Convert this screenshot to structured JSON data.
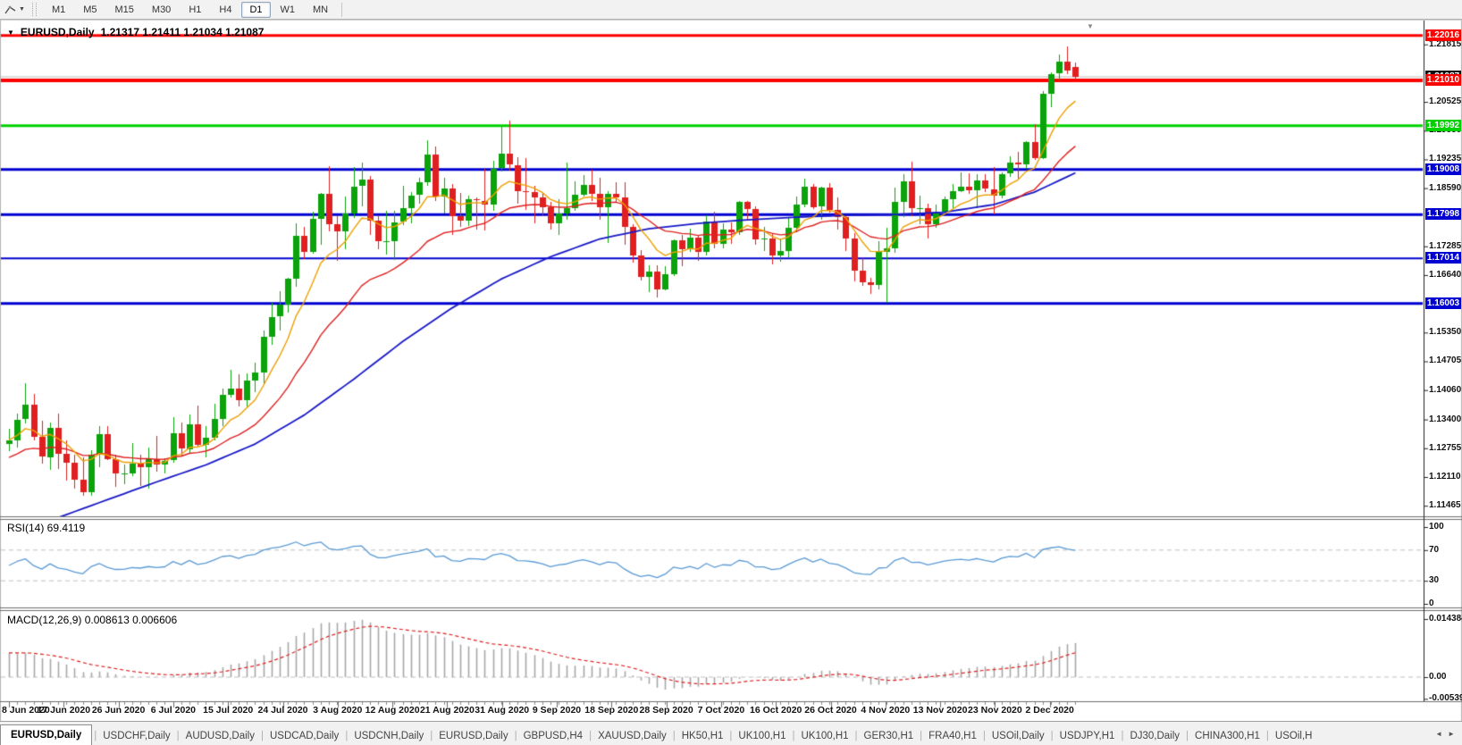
{
  "toolbar": {
    "timeframes": [
      "M1",
      "M5",
      "M15",
      "M30",
      "H1",
      "H4",
      "D1",
      "W1",
      "MN"
    ],
    "active": "D1"
  },
  "chart": {
    "title_symbol": "EURUSD,Daily",
    "title_ohlc": "1.21317 1.21411 1.21034 1.21087",
    "rsi_label": "RSI(14) 69.4119",
    "macd_label": "MACD(12,26,9) 0.008613 0.006606",
    "shift_marker": "▼"
  },
  "axis": {
    "price_ticks": [
      {
        "label": "1.21815",
        "price": 1.21815
      },
      {
        "label": "1.20525",
        "price": 1.20525
      },
      {
        "label": "1.19880",
        "price": 1.1988
      },
      {
        "label": "1.19235",
        "price": 1.19235
      },
      {
        "label": "1.18590",
        "price": 1.1859
      },
      {
        "label": "1.17285",
        "price": 1.17285
      },
      {
        "label": "1.16640",
        "price": 1.1664
      },
      {
        "label": "1.15350",
        "price": 1.1535
      },
      {
        "label": "1.14705",
        "price": 1.14705
      },
      {
        "label": "1.14060",
        "price": 1.1406
      },
      {
        "label": "1.13400",
        "price": 1.134
      },
      {
        "label": "1.12755",
        "price": 1.12755
      },
      {
        "label": "1.12110",
        "price": 1.1211
      },
      {
        "label": "1.11465",
        "price": 1.11465
      }
    ],
    "rsi_ticks": [
      {
        "label": "100",
        "value": 100
      },
      {
        "label": "70",
        "value": 70
      },
      {
        "label": "30",
        "value": 30
      },
      {
        "label": "0",
        "value": 0
      }
    ],
    "macd_ticks": [
      {
        "label": "0.014384",
        "value": 0.014384
      },
      {
        "label": "0.00",
        "value": 0
      },
      {
        "label": "-0.00539",
        "value": -0.00539
      }
    ],
    "date_labels": [
      "8 Jun 2020",
      "17 Jun 2020",
      "26 Jun 2020",
      "6 Jul 2020",
      "15 Jul 2020",
      "24 Jul 2020",
      "3 Aug 2020",
      "12 Aug 2020",
      "21 Aug 2020",
      "31 Aug 2020",
      "9 Sep 2020",
      "18 Sep 2020",
      "28 Sep 2020",
      "7 Oct 2020",
      "16 Oct 2020",
      "26 Oct 2020",
      "4 Nov 2020",
      "13 Nov 2020",
      "23 Nov 2020",
      "2 Dec 2020"
    ]
  },
  "hlines": [
    {
      "label": "1.22016",
      "price": 1.22016,
      "color": "#ff0000",
      "width": 3
    },
    {
      "label": "1.21010",
      "price": 1.2101,
      "color": "#ff0000",
      "width": 4
    },
    {
      "label": "1.19992",
      "price": 1.19992,
      "color": "#00d200",
      "width": 3
    },
    {
      "label": "1.19008",
      "price": 1.19008,
      "color": "#0000d2",
      "width": 3
    },
    {
      "label": "1.17998",
      "price": 1.17998,
      "color": "#0000d2",
      "width": 3
    },
    {
      "label": "1.17014",
      "price": 1.17014,
      "color": "#0000d2",
      "width": 2
    },
    {
      "label": "1.16003",
      "price": 1.16003,
      "color": "#0000d2",
      "width": 3
    }
  ],
  "current_price": {
    "label": "1.21087",
    "price": 1.21087,
    "line_color": "#b8b8b8",
    "badge_color": "#111111"
  },
  "tabbar": {
    "tabs": [
      "EURUSD,Daily",
      "USDCHF,Daily",
      "AUDUSD,Daily",
      "USDCAD,Daily",
      "USDCNH,Daily",
      "EURUSD,Daily",
      "GBPUSD,H4",
      "XAUUSD,Daily",
      "HK50,H1",
      "UK100,H1",
      "UK100,H1",
      "GER30,H1",
      "FRA40,H1",
      "USOil,Daily",
      "USDJPY,H1",
      "DJ30,Daily",
      "CHINA300,H1",
      "USOil,H"
    ],
    "active_index": 0,
    "scroll_left": "◄",
    "scroll_right": "►"
  },
  "chart_data": {
    "type": "candlestick",
    "symbol": "EURUSD",
    "timeframe": "Daily",
    "start_date": "8 Jun 2020",
    "last_bar": {
      "open": 1.21317,
      "high": 1.21411,
      "low": 1.21034,
      "close": 1.21087
    },
    "price_scale": {
      "top": 1.2225,
      "bottom": 1.11228
    },
    "colors": {
      "up": "#0ba30b",
      "down": "#e02020",
      "ma_fast": "#eda000",
      "ma_medium": "#e02020",
      "ma_slow": "#1818c8",
      "rsi": "#5b9bd5",
      "macd_hist": "#a8a8a8",
      "macd_signal": "#e02020",
      "level_dash": "#c0c0c0"
    },
    "indicators": {
      "rsi": {
        "period": 14,
        "current": 69.4119
      },
      "macd": {
        "fast": 12,
        "slow": 26,
        "signal": 9,
        "macd_value": 0.008613,
        "signal_value": 0.006606,
        "max": 0.014384,
        "min": -0.00539
      },
      "moving_averages": [
        {
          "name": "fast",
          "type": "ema",
          "period": 8
        },
        {
          "name": "medium",
          "type": "ema",
          "period": 21
        },
        {
          "name": "slow",
          "type": "long-sma"
        }
      ]
    },
    "ma_slow_points": [
      [
        0,
        1.1095
      ],
      [
        6,
        1.112
      ],
      [
        12,
        1.116
      ],
      [
        18,
        1.12
      ],
      [
        24,
        1.1238
      ],
      [
        30,
        1.1285
      ],
      [
        36,
        1.135
      ],
      [
        42,
        1.143
      ],
      [
        48,
        1.1515
      ],
      [
        54,
        1.159
      ],
      [
        60,
        1.1655
      ],
      [
        66,
        1.1705
      ],
      [
        72,
        1.1745
      ],
      [
        78,
        1.1768
      ],
      [
        84,
        1.178
      ],
      [
        90,
        1.1788
      ],
      [
        96,
        1.1794
      ],
      [
        102,
        1.1798
      ],
      [
        108,
        1.18
      ],
      [
        114,
        1.1805
      ],
      [
        120,
        1.1822
      ],
      [
        125,
        1.185
      ],
      [
        131,
        1.1902
      ]
    ],
    "candles": [
      [
        1.1285,
        1.132,
        1.127,
        1.1294
      ],
      [
        1.1294,
        1.1354,
        1.1278,
        1.134
      ],
      [
        1.134,
        1.1422,
        1.1332,
        1.1373
      ],
      [
        1.1373,
        1.1398,
        1.1293,
        1.1301
      ],
      [
        1.1301,
        1.1338,
        1.1241,
        1.1256
      ],
      [
        1.1256,
        1.1333,
        1.1226,
        1.1322
      ],
      [
        1.1322,
        1.1353,
        1.1228,
        1.1264
      ],
      [
        1.1264,
        1.1294,
        1.1204,
        1.1244
      ],
      [
        1.1244,
        1.1262,
        1.1186,
        1.1205
      ],
      [
        1.1205,
        1.1255,
        1.1168,
        1.1177
      ],
      [
        1.1177,
        1.1271,
        1.1168,
        1.1261
      ],
      [
        1.1261,
        1.1326,
        1.1233,
        1.1308
      ],
      [
        1.1308,
        1.1325,
        1.1248,
        1.1251
      ],
      [
        1.1251,
        1.1262,
        1.119,
        1.1218
      ],
      [
        1.1218,
        1.1239,
        1.1194,
        1.1219
      ],
      [
        1.1219,
        1.1288,
        1.1214,
        1.1242
      ],
      [
        1.1242,
        1.1262,
        1.1191,
        1.1234
      ],
      [
        1.1234,
        1.1277,
        1.1185,
        1.1252
      ],
      [
        1.1252,
        1.1303,
        1.1223,
        1.1239
      ],
      [
        1.1239,
        1.1254,
        1.1219,
        1.1248
      ],
      [
        1.1248,
        1.1346,
        1.1243,
        1.1309
      ],
      [
        1.1309,
        1.1333,
        1.1259,
        1.1274
      ],
      [
        1.1274,
        1.1352,
        1.1266,
        1.133
      ],
      [
        1.133,
        1.1371,
        1.1279,
        1.1284
      ],
      [
        1.1284,
        1.1325,
        1.1255,
        1.13
      ],
      [
        1.13,
        1.1375,
        1.1292,
        1.1342
      ],
      [
        1.1342,
        1.1409,
        1.1325,
        1.1396
      ],
      [
        1.1396,
        1.1452,
        1.139,
        1.141
      ],
      [
        1.141,
        1.1442,
        1.137,
        1.1383
      ],
      [
        1.1383,
        1.1444,
        1.1369,
        1.1427
      ],
      [
        1.1427,
        1.1467,
        1.14,
        1.1446
      ],
      [
        1.1446,
        1.154,
        1.1422,
        1.1526
      ],
      [
        1.1526,
        1.1601,
        1.1507,
        1.157
      ],
      [
        1.157,
        1.1627,
        1.1539,
        1.1597
      ],
      [
        1.1597,
        1.1658,
        1.158,
        1.1656
      ],
      [
        1.1656,
        1.1781,
        1.1639,
        1.1752
      ],
      [
        1.1752,
        1.1773,
        1.17,
        1.1716
      ],
      [
        1.1716,
        1.1806,
        1.1712,
        1.1791
      ],
      [
        1.1791,
        1.1849,
        1.1732,
        1.1847
      ],
      [
        1.1847,
        1.1909,
        1.1762,
        1.1778
      ],
      [
        1.1778,
        1.1797,
        1.1696,
        1.1762
      ],
      [
        1.1762,
        1.1841,
        1.1723,
        1.1802
      ],
      [
        1.1802,
        1.1906,
        1.1791,
        1.1863
      ],
      [
        1.1863,
        1.1917,
        1.1818,
        1.1878
      ],
      [
        1.1878,
        1.1886,
        1.1754,
        1.1786
      ],
      [
        1.1786,
        1.1798,
        1.1722,
        1.1739
      ],
      [
        1.1739,
        1.1808,
        1.171,
        1.174
      ],
      [
        1.174,
        1.1809,
        1.1699,
        1.1783
      ],
      [
        1.1783,
        1.1864,
        1.1775,
        1.1814
      ],
      [
        1.1814,
        1.1851,
        1.1781,
        1.1843
      ],
      [
        1.1843,
        1.1882,
        1.1824,
        1.1872
      ],
      [
        1.1872,
        1.1966,
        1.1863,
        1.1934
      ],
      [
        1.1934,
        1.1952,
        1.1829,
        1.1839
      ],
      [
        1.1839,
        1.1882,
        1.1802,
        1.1858
      ],
      [
        1.1858,
        1.1868,
        1.1753,
        1.1796
      ],
      [
        1.1796,
        1.1848,
        1.1772,
        1.1786
      ],
      [
        1.1786,
        1.1843,
        1.1774,
        1.1834
      ],
      [
        1.1834,
        1.1838,
        1.1766,
        1.1831
      ],
      [
        1.1831,
        1.1902,
        1.1763,
        1.1822
      ],
      [
        1.1822,
        1.192,
        1.1808,
        1.1903
      ],
      [
        1.1903,
        1.1997,
        1.1897,
        1.1936
      ],
      [
        1.1936,
        1.2011,
        1.1899,
        1.1911
      ],
      [
        1.1911,
        1.1928,
        1.1823,
        1.1853
      ],
      [
        1.1853,
        1.1927,
        1.181,
        1.185
      ],
      [
        1.185,
        1.1865,
        1.1781,
        1.1838
      ],
      [
        1.1838,
        1.1848,
        1.1796,
        1.1816
      ],
      [
        1.1816,
        1.1828,
        1.1766,
        1.1779
      ],
      [
        1.1779,
        1.1834,
        1.1753,
        1.1802
      ],
      [
        1.1802,
        1.1917,
        1.1789,
        1.1814
      ],
      [
        1.1814,
        1.1874,
        1.1808,
        1.1845
      ],
      [
        1.1845,
        1.1888,
        1.184,
        1.1867
      ],
      [
        1.1867,
        1.19,
        1.1829,
        1.1846
      ],
      [
        1.1846,
        1.1882,
        1.1788,
        1.1816
      ],
      [
        1.1816,
        1.1853,
        1.1737,
        1.1847
      ],
      [
        1.1847,
        1.1872,
        1.1826,
        1.1839
      ],
      [
        1.1839,
        1.1872,
        1.1732,
        1.1772
      ],
      [
        1.1772,
        1.1778,
        1.1692,
        1.1707
      ],
      [
        1.1707,
        1.1719,
        1.1651,
        1.1659
      ],
      [
        1.1659,
        1.1686,
        1.1626,
        1.1672
      ],
      [
        1.1672,
        1.1685,
        1.1612,
        1.1631
      ],
      [
        1.1631,
        1.1683,
        1.1628,
        1.1665
      ],
      [
        1.1665,
        1.1745,
        1.1662,
        1.1742
      ],
      [
        1.1742,
        1.1755,
        1.1684,
        1.1721
      ],
      [
        1.1721,
        1.1769,
        1.1717,
        1.1748
      ],
      [
        1.1748,
        1.1752,
        1.1695,
        1.1716
      ],
      [
        1.1716,
        1.1798,
        1.1708,
        1.1784
      ],
      [
        1.1784,
        1.1807,
        1.1725,
        1.1733
      ],
      [
        1.1733,
        1.1781,
        1.1725,
        1.1766
      ],
      [
        1.1766,
        1.1782,
        1.1733,
        1.176
      ],
      [
        1.176,
        1.1831,
        1.1754,
        1.1829
      ],
      [
        1.1829,
        1.1831,
        1.1786,
        1.1813
      ],
      [
        1.1813,
        1.1818,
        1.1732,
        1.1745
      ],
      [
        1.1745,
        1.1772,
        1.1718,
        1.1746
      ],
      [
        1.1746,
        1.1758,
        1.1688,
        1.1708
      ],
      [
        1.1708,
        1.1747,
        1.1694,
        1.1718
      ],
      [
        1.1718,
        1.1794,
        1.1703,
        1.177
      ],
      [
        1.177,
        1.184,
        1.176,
        1.1822
      ],
      [
        1.1822,
        1.1881,
        1.1817,
        1.1863
      ],
      [
        1.1863,
        1.1868,
        1.1811,
        1.1817
      ],
      [
        1.1817,
        1.1862,
        1.1787,
        1.186
      ],
      [
        1.186,
        1.187,
        1.1803,
        1.181
      ],
      [
        1.181,
        1.1838,
        1.1765,
        1.1794
      ],
      [
        1.1794,
        1.18,
        1.1718,
        1.1746
      ],
      [
        1.1746,
        1.1759,
        1.165,
        1.1673
      ],
      [
        1.1673,
        1.1704,
        1.164,
        1.1647
      ],
      [
        1.1647,
        1.1658,
        1.1621,
        1.164
      ],
      [
        1.164,
        1.1741,
        1.1633,
        1.1715
      ],
      [
        1.1715,
        1.1771,
        1.1603,
        1.1723
      ],
      [
        1.1723,
        1.1861,
        1.1715,
        1.1828
      ],
      [
        1.1828,
        1.1891,
        1.1795,
        1.1874
      ],
      [
        1.1874,
        1.1918,
        1.1795,
        1.1813
      ],
      [
        1.1813,
        1.1843,
        1.1779,
        1.1815
      ],
      [
        1.1815,
        1.1824,
        1.1745,
        1.1779
      ],
      [
        1.1779,
        1.1823,
        1.1771,
        1.1805
      ],
      [
        1.1805,
        1.184,
        1.1799,
        1.1834
      ],
      [
        1.1834,
        1.1869,
        1.1814,
        1.1852
      ],
      [
        1.1852,
        1.1894,
        1.1849,
        1.1863
      ],
      [
        1.1863,
        1.1892,
        1.1845,
        1.1854
      ],
      [
        1.1854,
        1.1891,
        1.1815,
        1.1876
      ],
      [
        1.1876,
        1.189,
        1.1849,
        1.1857
      ],
      [
        1.1857,
        1.1906,
        1.1799,
        1.1842
      ],
      [
        1.1842,
        1.1895,
        1.1836,
        1.1891
      ],
      [
        1.1891,
        1.193,
        1.1883,
        1.1916
      ],
      [
        1.1916,
        1.1941,
        1.1881,
        1.1912
      ],
      [
        1.1912,
        1.1965,
        1.1903,
        1.1963
      ],
      [
        1.1963,
        1.2003,
        1.1923,
        1.1926
      ],
      [
        1.1926,
        1.2076,
        1.1923,
        1.2071
      ],
      [
        1.2071,
        1.2118,
        1.2039,
        1.2115
      ],
      [
        1.2115,
        1.2159,
        1.2099,
        1.2142
      ],
      [
        1.2142,
        1.2177,
        1.2115,
        1.2121
      ],
      [
        1.21317,
        1.21411,
        1.21034,
        1.21087
      ]
    ]
  }
}
